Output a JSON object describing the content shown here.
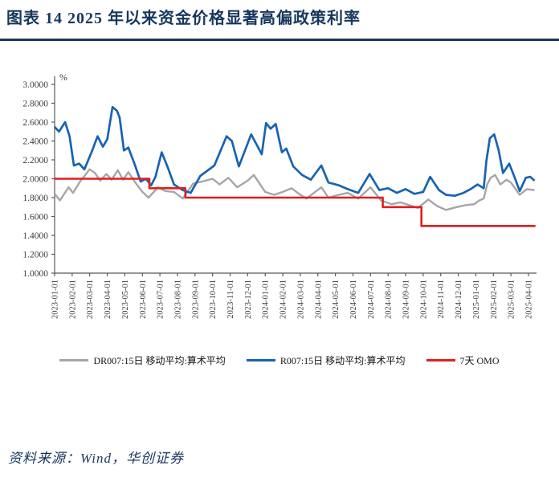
{
  "header": {
    "title": "图表 14  2025 年以来资金价格显著高偏政策利率"
  },
  "footer": {
    "source": "资料来源：Wind，华创证券"
  },
  "chart_data": {
    "type": "line",
    "title": "2025 年以来资金价格显著高偏政策利率",
    "unit_label": "%",
    "grid": false,
    "legend_position": "bottom",
    "ylim": [
      1.0,
      3.0
    ],
    "y_ticks": [
      "3.0000",
      "2.8000",
      "2.6000",
      "2.4000",
      "2.2000",
      "2.0000",
      "1.8000",
      "1.6000",
      "1.4000",
      "1.2000",
      "1.0000"
    ],
    "x_ticks": [
      "2023-01-01",
      "2023-02-01",
      "2023-03-01",
      "2023-04-01",
      "2023-05-01",
      "2023-06-01",
      "2023-07-01",
      "2023-08-01",
      "2023-09-01",
      "2023-10-01",
      "2023-11-01",
      "2023-12-01",
      "2024-01-01",
      "2024-02-01",
      "2024-03-01",
      "2024-04-01",
      "2024-05-01",
      "2024-06-01",
      "2024-07-01",
      "2024-08-01",
      "2024-09-01",
      "2024-10-01",
      "2024-11-01",
      "2024-12-01",
      "2025-01-01",
      "2025-02-01",
      "2025-03-01",
      "2025-04-01"
    ],
    "x_unit": "months_since_2023_01_01",
    "series": [
      {
        "name": "DR007:15日 移动平均:算术平均",
        "color": "#A6A6A6",
        "width": 2.4,
        "points": [
          [
            0,
            1.84
          ],
          [
            0.3,
            1.77
          ],
          [
            0.8,
            1.91
          ],
          [
            1.05,
            1.85
          ],
          [
            1.45,
            1.97
          ],
          [
            2.0,
            2.1
          ],
          [
            2.3,
            2.06
          ],
          [
            2.6,
            1.98
          ],
          [
            2.95,
            2.05
          ],
          [
            3.25,
            1.99
          ],
          [
            3.6,
            2.09
          ],
          [
            3.9,
            1.99
          ],
          [
            4.2,
            2.07
          ],
          [
            4.6,
            1.96
          ],
          [
            5.0,
            1.86
          ],
          [
            5.35,
            1.8
          ],
          [
            5.9,
            1.91
          ],
          [
            6.3,
            1.87
          ],
          [
            6.8,
            1.86
          ],
          [
            7.3,
            1.79
          ],
          [
            7.9,
            1.95
          ],
          [
            8.4,
            1.97
          ],
          [
            9.0,
            2.0
          ],
          [
            9.4,
            1.94
          ],
          [
            9.9,
            2.01
          ],
          [
            10.4,
            1.91
          ],
          [
            11.0,
            1.98
          ],
          [
            11.35,
            2.04
          ],
          [
            12.0,
            1.86
          ],
          [
            12.5,
            1.83
          ],
          [
            13.0,
            1.86
          ],
          [
            13.5,
            1.9
          ],
          [
            14.0,
            1.83
          ],
          [
            14.35,
            1.79
          ],
          [
            15.2,
            1.91
          ],
          [
            15.6,
            1.8
          ],
          [
            16.2,
            1.83
          ],
          [
            16.7,
            1.85
          ],
          [
            17.3,
            1.79
          ],
          [
            18.0,
            1.91
          ],
          [
            18.6,
            1.77
          ],
          [
            19.2,
            1.73
          ],
          [
            19.7,
            1.75
          ],
          [
            20.2,
            1.72
          ],
          [
            20.7,
            1.69
          ],
          [
            21.3,
            1.78
          ],
          [
            21.8,
            1.71
          ],
          [
            22.3,
            1.67
          ],
          [
            22.9,
            1.7
          ],
          [
            23.4,
            1.72
          ],
          [
            23.9,
            1.73
          ],
          [
            24.2,
            1.77
          ],
          [
            24.45,
            1.79
          ],
          [
            24.65,
            1.94
          ],
          [
            24.85,
            2.01
          ],
          [
            25.1,
            2.04
          ],
          [
            25.4,
            1.94
          ],
          [
            25.75,
            1.99
          ],
          [
            26.0,
            1.96
          ],
          [
            26.5,
            1.83
          ],
          [
            26.9,
            1.89
          ],
          [
            27.35,
            1.88
          ]
        ]
      },
      {
        "name": "R007:15日 移动平均:算术平均",
        "color": "#1763B2",
        "width": 2.7,
        "points": [
          [
            0,
            2.55
          ],
          [
            0.25,
            2.5
          ],
          [
            0.6,
            2.6
          ],
          [
            0.85,
            2.45
          ],
          [
            1.1,
            2.14
          ],
          [
            1.4,
            2.16
          ],
          [
            1.7,
            2.1
          ],
          [
            2.1,
            2.28
          ],
          [
            2.45,
            2.45
          ],
          [
            2.75,
            2.34
          ],
          [
            3.0,
            2.42
          ],
          [
            3.3,
            2.76
          ],
          [
            3.55,
            2.72
          ],
          [
            3.7,
            2.65
          ],
          [
            3.95,
            2.3
          ],
          [
            4.2,
            2.33
          ],
          [
            4.55,
            2.16
          ],
          [
            4.9,
            1.97
          ],
          [
            5.2,
            2.0
          ],
          [
            5.5,
            1.93
          ],
          [
            5.75,
            2.02
          ],
          [
            6.1,
            2.28
          ],
          [
            6.45,
            2.12
          ],
          [
            6.8,
            1.94
          ],
          [
            7.3,
            1.88
          ],
          [
            7.75,
            1.85
          ],
          [
            8.3,
            2.03
          ],
          [
            9.1,
            2.14
          ],
          [
            9.8,
            2.45
          ],
          [
            10.1,
            2.4
          ],
          [
            10.5,
            2.13
          ],
          [
            11.2,
            2.47
          ],
          [
            11.8,
            2.26
          ],
          [
            12.05,
            2.59
          ],
          [
            12.3,
            2.53
          ],
          [
            12.6,
            2.58
          ],
          [
            12.95,
            2.28
          ],
          [
            13.2,
            2.32
          ],
          [
            13.6,
            2.13
          ],
          [
            14.1,
            2.04
          ],
          [
            14.6,
            1.99
          ],
          [
            15.2,
            2.14
          ],
          [
            15.6,
            1.96
          ],
          [
            16.2,
            1.93
          ],
          [
            16.7,
            1.89
          ],
          [
            17.3,
            1.85
          ],
          [
            17.95,
            2.05
          ],
          [
            18.5,
            1.88
          ],
          [
            19.0,
            1.9
          ],
          [
            19.5,
            1.85
          ],
          [
            20.0,
            1.89
          ],
          [
            20.5,
            1.84
          ],
          [
            21.0,
            1.86
          ],
          [
            21.4,
            2.02
          ],
          [
            21.9,
            1.88
          ],
          [
            22.3,
            1.83
          ],
          [
            22.8,
            1.82
          ],
          [
            23.3,
            1.85
          ],
          [
            23.7,
            1.89
          ],
          [
            24.1,
            1.94
          ],
          [
            24.45,
            1.9
          ],
          [
            24.6,
            2.19
          ],
          [
            24.8,
            2.43
          ],
          [
            25.05,
            2.47
          ],
          [
            25.3,
            2.3
          ],
          [
            25.55,
            2.06
          ],
          [
            25.9,
            2.16
          ],
          [
            26.2,
            2.02
          ],
          [
            26.5,
            1.87
          ],
          [
            26.85,
            2.01
          ],
          [
            27.1,
            2.02
          ],
          [
            27.35,
            1.98
          ]
        ]
      },
      {
        "name": "7天 OMO",
        "color": "#E01F1F",
        "width": 2.6,
        "points": [
          [
            0,
            2.0
          ],
          [
            5.4,
            2.0
          ],
          [
            5.4,
            1.9
          ],
          [
            7.45,
            1.9
          ],
          [
            7.45,
            1.8
          ],
          [
            18.7,
            1.8
          ],
          [
            18.7,
            1.7
          ],
          [
            20.9,
            1.7
          ],
          [
            20.9,
            1.5
          ],
          [
            27.4,
            1.5
          ]
        ]
      }
    ]
  }
}
